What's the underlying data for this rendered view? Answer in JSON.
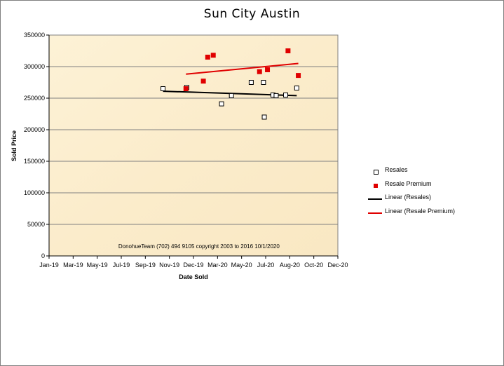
{
  "chart_data": {
    "type": "scatter",
    "title": "Sun City  Austin",
    "xlabel": "Date Sold",
    "ylabel": "Sold Price",
    "x_tick_labels": [
      "Jan-19",
      "Mar-19",
      "May-19",
      "Jul-19",
      "Sep-19",
      "Nov-19",
      "Dec-19",
      "Mar-20",
      "May-20",
      "Jul-20",
      "Aug-20",
      "Oct-20",
      "Dec-20"
    ],
    "xlim": [
      "2019-01-01",
      "2020-12-31"
    ],
    "ylim": [
      0,
      350000
    ],
    "y_ticks": [
      "0",
      "50000",
      "100000",
      "150000",
      "200000",
      "250000",
      "300000",
      "350000"
    ],
    "y_tick_values": [
      0,
      50000,
      100000,
      150000,
      200000,
      250000,
      300000,
      350000
    ],
    "grid": "horizontal",
    "annotation": "DonohueTeam   (702) 494 9105 copyright  2003 to 2016  10/1/2020",
    "legend_position": "right",
    "series": [
      {
        "name": "Resales",
        "marker": "open-square",
        "color": "#000000",
        "points": [
          {
            "x": "2019-10-16",
            "y": 265000
          },
          {
            "x": "2019-12-15",
            "y": 267000
          },
          {
            "x": "2020-03-12",
            "y": 241000
          },
          {
            "x": "2020-04-06",
            "y": 254000
          },
          {
            "x": "2020-05-26",
            "y": 275000
          },
          {
            "x": "2020-06-26",
            "y": 275000
          },
          {
            "x": "2020-06-28",
            "y": 220000
          },
          {
            "x": "2020-07-20",
            "y": 255000
          },
          {
            "x": "2020-07-28",
            "y": 254000
          },
          {
            "x": "2020-08-21",
            "y": 255000
          },
          {
            "x": "2020-09-18",
            "y": 266000
          }
        ]
      },
      {
        "name": "Resale Premium",
        "marker": "filled-square",
        "color": "#e00000",
        "points": [
          {
            "x": "2019-12-13",
            "y": 265000
          },
          {
            "x": "2020-01-26",
            "y": 277000
          },
          {
            "x": "2020-02-06",
            "y": 315000
          },
          {
            "x": "2020-02-20",
            "y": 318000
          },
          {
            "x": "2020-06-16",
            "y": 292000
          },
          {
            "x": "2020-07-06",
            "y": 295000
          },
          {
            "x": "2020-08-27",
            "y": 325000
          },
          {
            "x": "2020-09-22",
            "y": 286000
          }
        ]
      },
      {
        "name": "Linear (Resales)",
        "type": "trendline",
        "color": "#000000",
        "points": [
          {
            "x": "2019-10-16",
            "y": 261000
          },
          {
            "x": "2020-09-18",
            "y": 254000
          }
        ]
      },
      {
        "name": "Linear (Resale Premium)",
        "type": "trendline",
        "color": "#e00000",
        "points": [
          {
            "x": "2019-12-13",
            "y": 288000
          },
          {
            "x": "2020-09-22",
            "y": 305000
          }
        ]
      }
    ]
  },
  "colors": {
    "plot_background": "#fbeecc",
    "gridline": "#808080",
    "resale_premium": "#e00000",
    "resales": "#000000"
  }
}
